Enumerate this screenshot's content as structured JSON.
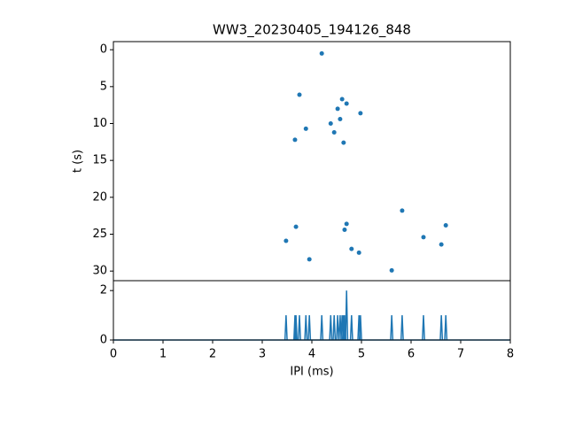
{
  "chart_data": [
    {
      "type": "scatter",
      "title": "WW3_20230405_194126_848",
      "ylabel": "t (s)",
      "color": "#1f77b4",
      "x": [
        4.2,
        3.75,
        4.61,
        4.7,
        4.52,
        4.98,
        4.57,
        4.38,
        3.88,
        4.45,
        3.66,
        4.64,
        5.82,
        4.7,
        3.68,
        6.7,
        4.66,
        6.25,
        3.48,
        6.61,
        4.8,
        4.95,
        3.95,
        5.61
      ],
      "values": [
        0.5,
        6.1,
        6.7,
        7.3,
        8.0,
        8.6,
        9.4,
        10.0,
        10.7,
        11.2,
        12.2,
        12.6,
        21.8,
        23.6,
        24.0,
        23.8,
        24.4,
        25.4,
        25.9,
        26.4,
        27.0,
        27.5,
        28.4,
        29.9
      ],
      "xlim": [
        0,
        8
      ],
      "ylim": [
        -1.1,
        31.3
      ],
      "y_inverted": true,
      "yticks": [
        0,
        5,
        10,
        15,
        20,
        25,
        30
      ]
    },
    {
      "type": "spike",
      "xlabel": "IPI (ms)",
      "color": "#1f77b4",
      "x": [
        3.48,
        3.66,
        3.68,
        3.75,
        3.88,
        3.95,
        4.2,
        4.38,
        4.45,
        4.52,
        4.57,
        4.61,
        4.64,
        4.66,
        4.7,
        4.8,
        4.95,
        4.98,
        5.61,
        5.82,
        6.25,
        6.61,
        6.7
      ],
      "values": [
        1,
        1,
        1,
        1,
        1,
        1,
        1,
        1,
        1,
        1,
        1,
        1,
        1,
        1,
        2,
        1,
        1,
        1,
        1,
        1,
        1,
        1,
        1
      ],
      "xlim": [
        0,
        8
      ],
      "xticks": [
        0,
        1,
        2,
        3,
        4,
        5,
        6,
        7,
        8
      ],
      "ylim": [
        0,
        2.4
      ],
      "yticks": [
        0,
        2
      ]
    }
  ]
}
